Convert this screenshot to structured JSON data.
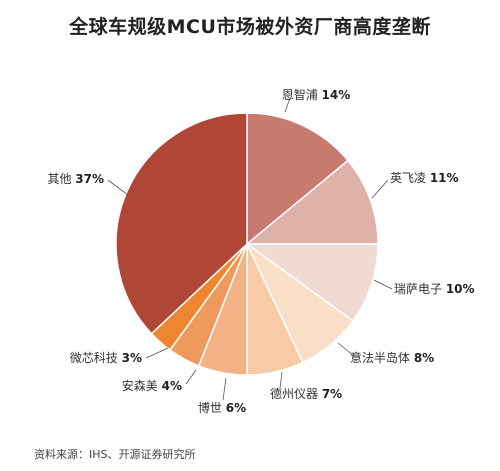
{
  "chart_data": {
    "type": "pie",
    "title": "全球车规级MCU市场被外资厂商高度垄断",
    "slices": [
      {
        "label": "恩智浦",
        "pct_text": "14%",
        "value": 14,
        "color": "#C87A6E"
      },
      {
        "label": "英飞凌",
        "pct_text": "11%",
        "value": 11,
        "color": "#DEB2A9"
      },
      {
        "label": "瑞萨电子",
        "pct_text": "10%",
        "value": 10,
        "color": "#F1DAD4"
      },
      {
        "label": "意法半岛体",
        "pct_text": "8%",
        "value": 8,
        "color": "#F9DFC8"
      },
      {
        "label": "德州仪器",
        "pct_text": "7%",
        "value": 7,
        "color": "#F7CBA6"
      },
      {
        "label": "博世",
        "pct_text": "6%",
        "value": 6,
        "color": "#F2B286"
      },
      {
        "label": "安森美",
        "pct_text": "4%",
        "value": 4,
        "color": "#EE9A5C"
      },
      {
        "label": "微芯科技",
        "pct_text": "3%",
        "value": 3,
        "color": "#EE8530"
      },
      {
        "label": "其他",
        "pct_text": "37%",
        "value": 37,
        "color": "#B04636"
      }
    ]
  },
  "footer": {
    "source": "资料来源：IHS、开源证券研究所"
  }
}
